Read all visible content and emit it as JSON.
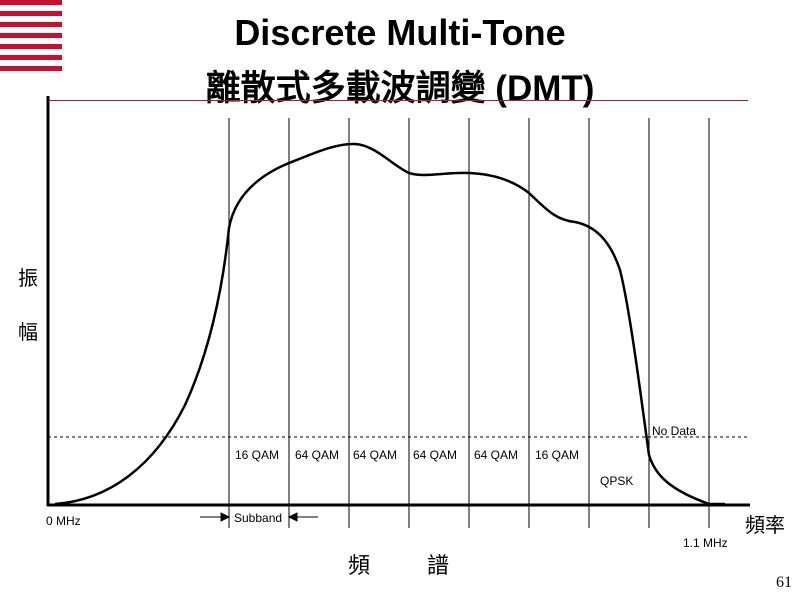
{
  "title": {
    "line1": "Discrete Multi-Tone",
    "line2": "離散式多載波調變 (DMT)"
  },
  "colors": {
    "accent": "#c8102e",
    "line": "#000000"
  },
  "logo": {
    "icon": "striped-logo-icon"
  },
  "axes": {
    "y_label_chars": [
      "振",
      "幅"
    ],
    "x_label": "頻率",
    "spectrum_label_chars": [
      "頻",
      "譜"
    ],
    "x_start": "0 MHz",
    "x_end": "1.1 MHz"
  },
  "threshold": {
    "label": "No Data"
  },
  "subband": {
    "label": "Subband"
  },
  "modulations": [
    "16 QAM",
    "64 QAM",
    "64 QAM",
    "64 QAM",
    "64 QAM",
    "16 QAM"
  ],
  "qpsk_label": "QPSK",
  "page_number": "61"
}
